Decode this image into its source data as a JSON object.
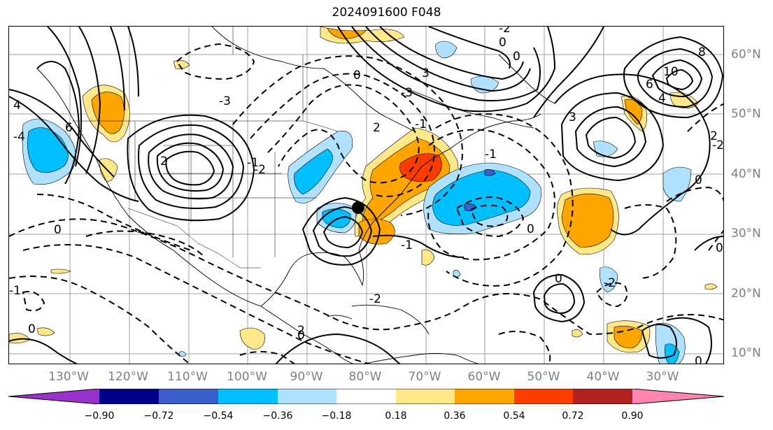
{
  "title": "2024091600 F048",
  "lon_labels": [
    "130°W",
    "120°W",
    "110°W",
    "100°W",
    "90°W",
    "80°W",
    "70°W",
    "60°W",
    "50°W",
    "40°W",
    "30°W"
  ],
  "lat_labels": [
    "60°N",
    "50°N",
    "40°N",
    "30°N",
    "20°N",
    "10°N"
  ],
  "colorbar": {
    "ticks": [
      "−0.90",
      "−0.72",
      "−0.54",
      "−0.36",
      "−0.18",
      "0.18",
      "0.36",
      "0.54",
      "0.72",
      "0.90"
    ],
    "colors": [
      "#9932cc",
      "#00008b",
      "#3a5fcd",
      "#00bfff",
      "#b0e2ff",
      "#ffffff",
      "#ffe88a",
      "#ffa500",
      "#ff3c00",
      "#b22222",
      "#ff85b0"
    ]
  },
  "contour_labels": [
    "0",
    "0",
    "-2",
    "-3",
    "4",
    "-4",
    "0",
    "0",
    "-1",
    "-2",
    "-2",
    "0",
    "0",
    "0",
    "0",
    "-1",
    "-1",
    "-2",
    "0",
    "2",
    "3",
    "6",
    "-3",
    "3",
    "2",
    "4",
    "6",
    "8",
    "10",
    "-2",
    "-1",
    "0",
    "2",
    "2",
    "-1",
    "0"
  ],
  "marker": "storm-center"
}
